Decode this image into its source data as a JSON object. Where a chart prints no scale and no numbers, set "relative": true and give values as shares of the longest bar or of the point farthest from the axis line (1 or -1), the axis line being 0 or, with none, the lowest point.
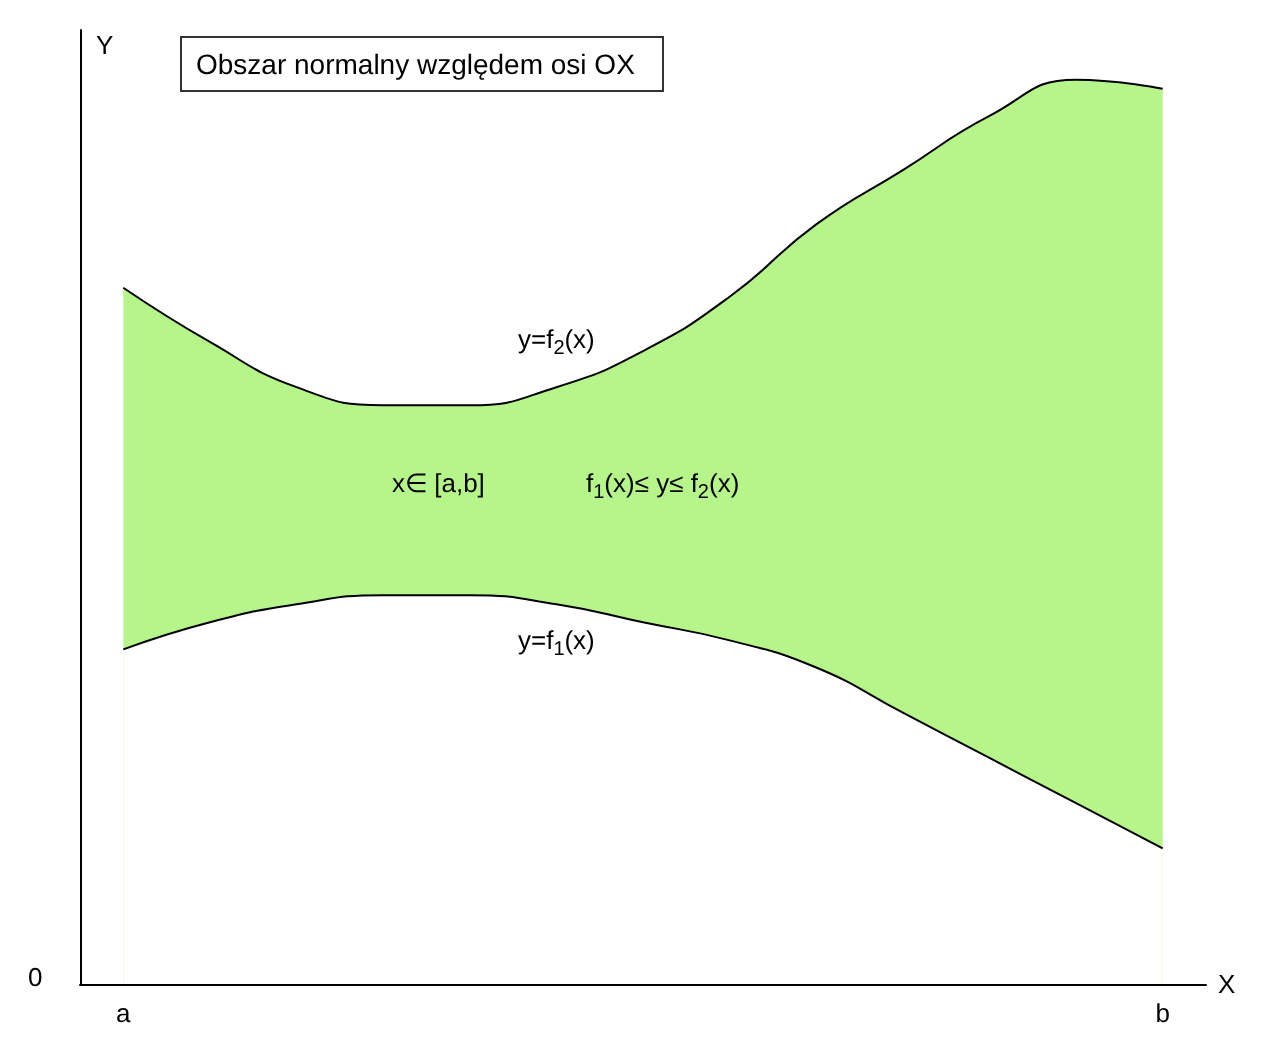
{
  "chart_data": {
    "type": "area",
    "relative": true,
    "title": "Obszar normalny względem osi OX",
    "xlabel": "X",
    "ylabel": "Y",
    "categories": [
      "a",
      null,
      null,
      null,
      null,
      null,
      null,
      null,
      null,
      null,
      null,
      null,
      "b"
    ],
    "series": [
      {
        "name": "y=f$_{1}$(x)",
        "color": "#ffffff",
        "values": [
          0.37,
          0.4,
          0.42,
          0.43,
          0.43,
          0.42,
          0.4,
          0.38,
          0.35,
          0.3,
          0.25,
          0.2,
          0.15
        ]
      },
      {
        "name": "y=f$_{2}$(x)",
        "color": "#b5f58a",
        "values": [
          0.77,
          0.71,
          0.66,
          0.64,
          0.64,
          0.66,
          0.7,
          0.76,
          0.84,
          0.9,
          0.96,
          1.0,
          0.99
        ]
      }
    ],
    "annotations": [
      "0",
      "x∈ [a,b]",
      "f$_{1}$(x)≤ y≤ f$_{2}$(x)"
    ],
    "legend": false,
    "marker": "none",
    "line_style": "solid"
  }
}
